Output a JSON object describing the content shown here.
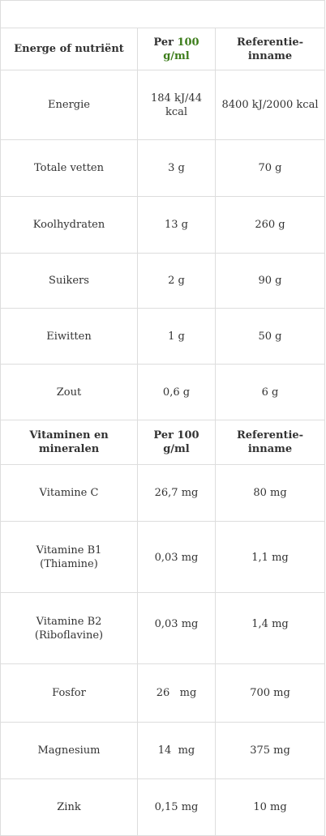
{
  "header": {
    "col1": "Energe of nutriënt",
    "col2_prefix": "Per ",
    "col2_highlight": "100 g/ml",
    "col3": "Referentie-inname"
  },
  "energy_rows": [
    {
      "name": "Energie",
      "per100": "184 kJ/44 kcal",
      "reference": "8400 kJ/2000 kcal"
    },
    {
      "name": "Totale vetten",
      "per100": "3 g",
      "reference": "70 g"
    },
    {
      "name": "Koolhydraten",
      "per100": "13 g",
      "reference": "260 g"
    },
    {
      "name": "Suikers",
      "per100": "2 g",
      "reference": "90 g"
    },
    {
      "name": "Eiwitten",
      "per100": "1 g",
      "reference": "50 g"
    },
    {
      "name": "Zout",
      "per100": "0,6 g",
      "reference": "6 g"
    }
  ],
  "header2": {
    "col1": "Vitaminen en mineralen",
    "col2": "Per 100 g/ml",
    "col3": "Referentie-inname"
  },
  "vitamin_rows": [
    {
      "name": "Vitamine C",
      "per100": "26,7 mg",
      "reference": "80 mg"
    },
    {
      "name": "Vitamine B1 (Thiamine)",
      "per100": "0,03 mg",
      "reference": "1,1 mg"
    },
    {
      "name": "Vitamine B2 (Riboflavine)",
      "per100": "0,03 mg",
      "reference": "1,4 mg"
    },
    {
      "name": "Fosfor",
      "per100": "26   mg",
      "reference": "700 mg"
    },
    {
      "name": "Magnesium",
      "per100": "14  mg",
      "reference": "375 mg"
    },
    {
      "name": "Zink",
      "per100": "0,15 mg",
      "reference": "10 mg"
    }
  ],
  "colors": {
    "highlight": "#3d7d1b",
    "border": "#dddddd",
    "text": "#333333"
  }
}
